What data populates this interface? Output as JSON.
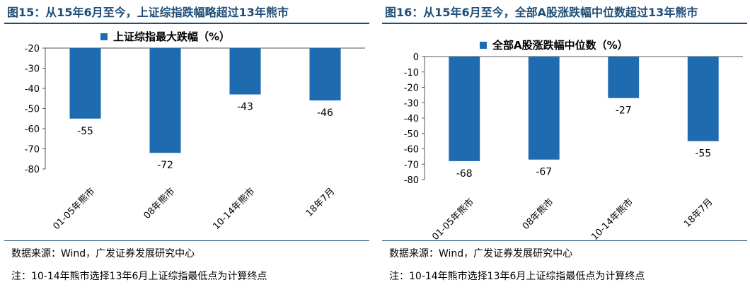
{
  "colors": {
    "bar": "#1f6bb0",
    "axis": "#555555",
    "title": "#1f4e79"
  },
  "charts": [
    {
      "title": "图15：从15年6月至今，上证综指跌幅略超过13年熊市",
      "source": "数据来源：Wind，广发证券发展研究中心",
      "footnote": "注：10-14年熊市选择13年6月上证综指最低点为计算终点",
      "chart_data": {
        "type": "bar",
        "categories": [
          "01-05年熊市",
          "08年熊市",
          "10-14年熊市",
          "18年7月"
        ],
        "series": [
          {
            "name": "上证综指最大跌幅（%）",
            "values": [
              -55,
              -72,
              -43,
              -46
            ]
          }
        ],
        "data_labels": [
          "-55",
          "-72",
          "-43",
          "-46"
        ],
        "ylim": [
          -80,
          -20
        ],
        "yticks": [
          "-20",
          "-30",
          "-40",
          "-50",
          "-60",
          "-70",
          "-80"
        ],
        "ytick_values": [
          -20,
          -30,
          -40,
          -50,
          -60,
          -70,
          -80
        ],
        "legend": "top-left"
      }
    },
    {
      "title": "图16：从15年6月至今，全部A股涨跌幅中位数超过13年熊市",
      "source": "数据来源：Wind，广发证券发展研究中心",
      "footnote": "注：10-14年熊市选择13年6月上证综指最低点为计算终点",
      "chart_data": {
        "type": "bar",
        "categories": [
          "01-05年熊市",
          "08年熊市",
          "10-14年熊市",
          "18年7月"
        ],
        "series": [
          {
            "name": "全部A股涨跌幅中位数（%）",
            "values": [
              -68,
              -67,
              -27,
              -55
            ]
          }
        ],
        "data_labels": [
          "-68",
          "-67",
          "-27",
          "-55"
        ],
        "ylim": [
          -80,
          0
        ],
        "yticks": [
          "0",
          "-10",
          "-20",
          "-30",
          "-40",
          "-50",
          "-60",
          "-70",
          "-80"
        ],
        "ytick_values": [
          0,
          -10,
          -20,
          -30,
          -40,
          -50,
          -60,
          -70,
          -80
        ],
        "legend": "top-left"
      }
    }
  ]
}
